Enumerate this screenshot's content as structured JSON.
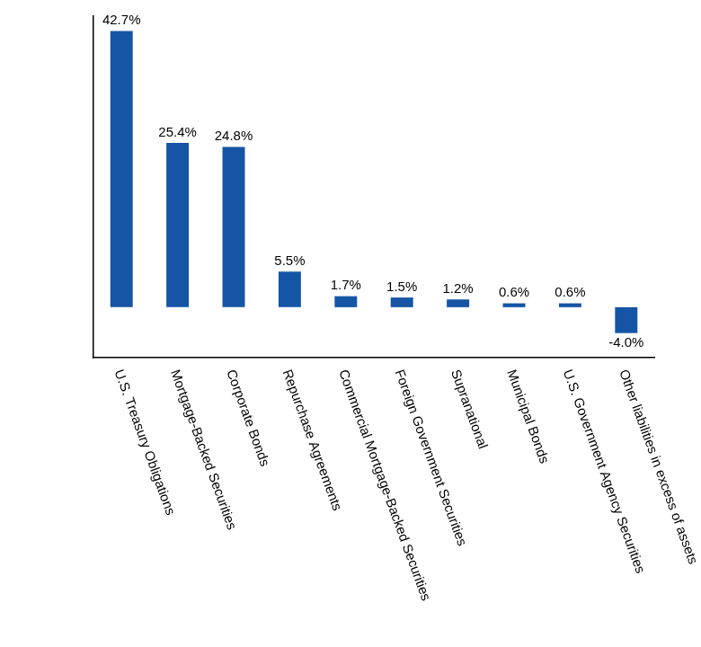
{
  "chart_data": {
    "type": "bar",
    "categories": [
      "U.S. Treasury Obligations",
      "Mortgage-Backed Securities",
      "Corporate Bonds",
      "Repurchase Agreements",
      "Commercial Mortgage-Backed Securities",
      "Foreign Government Securities",
      "Supranational",
      "Municipal Bonds",
      "U.S. Government Agency Securities",
      "Other liabilities in excess of assets"
    ],
    "values": [
      42.7,
      25.4,
      24.8,
      5.5,
      1.7,
      1.5,
      1.2,
      0.6,
      0.6,
      -4.0
    ],
    "value_labels": [
      "42.7%",
      "25.4%",
      "24.8%",
      "5.5%",
      "1.7%",
      "1.5%",
      "1.2%",
      "0.6%",
      "0.6%",
      "-4.0%"
    ],
    "color": "#1655a5",
    "ylim": [
      -7.8,
      45
    ],
    "grid": false,
    "data_labels": true,
    "tick_labels": "x"
  }
}
